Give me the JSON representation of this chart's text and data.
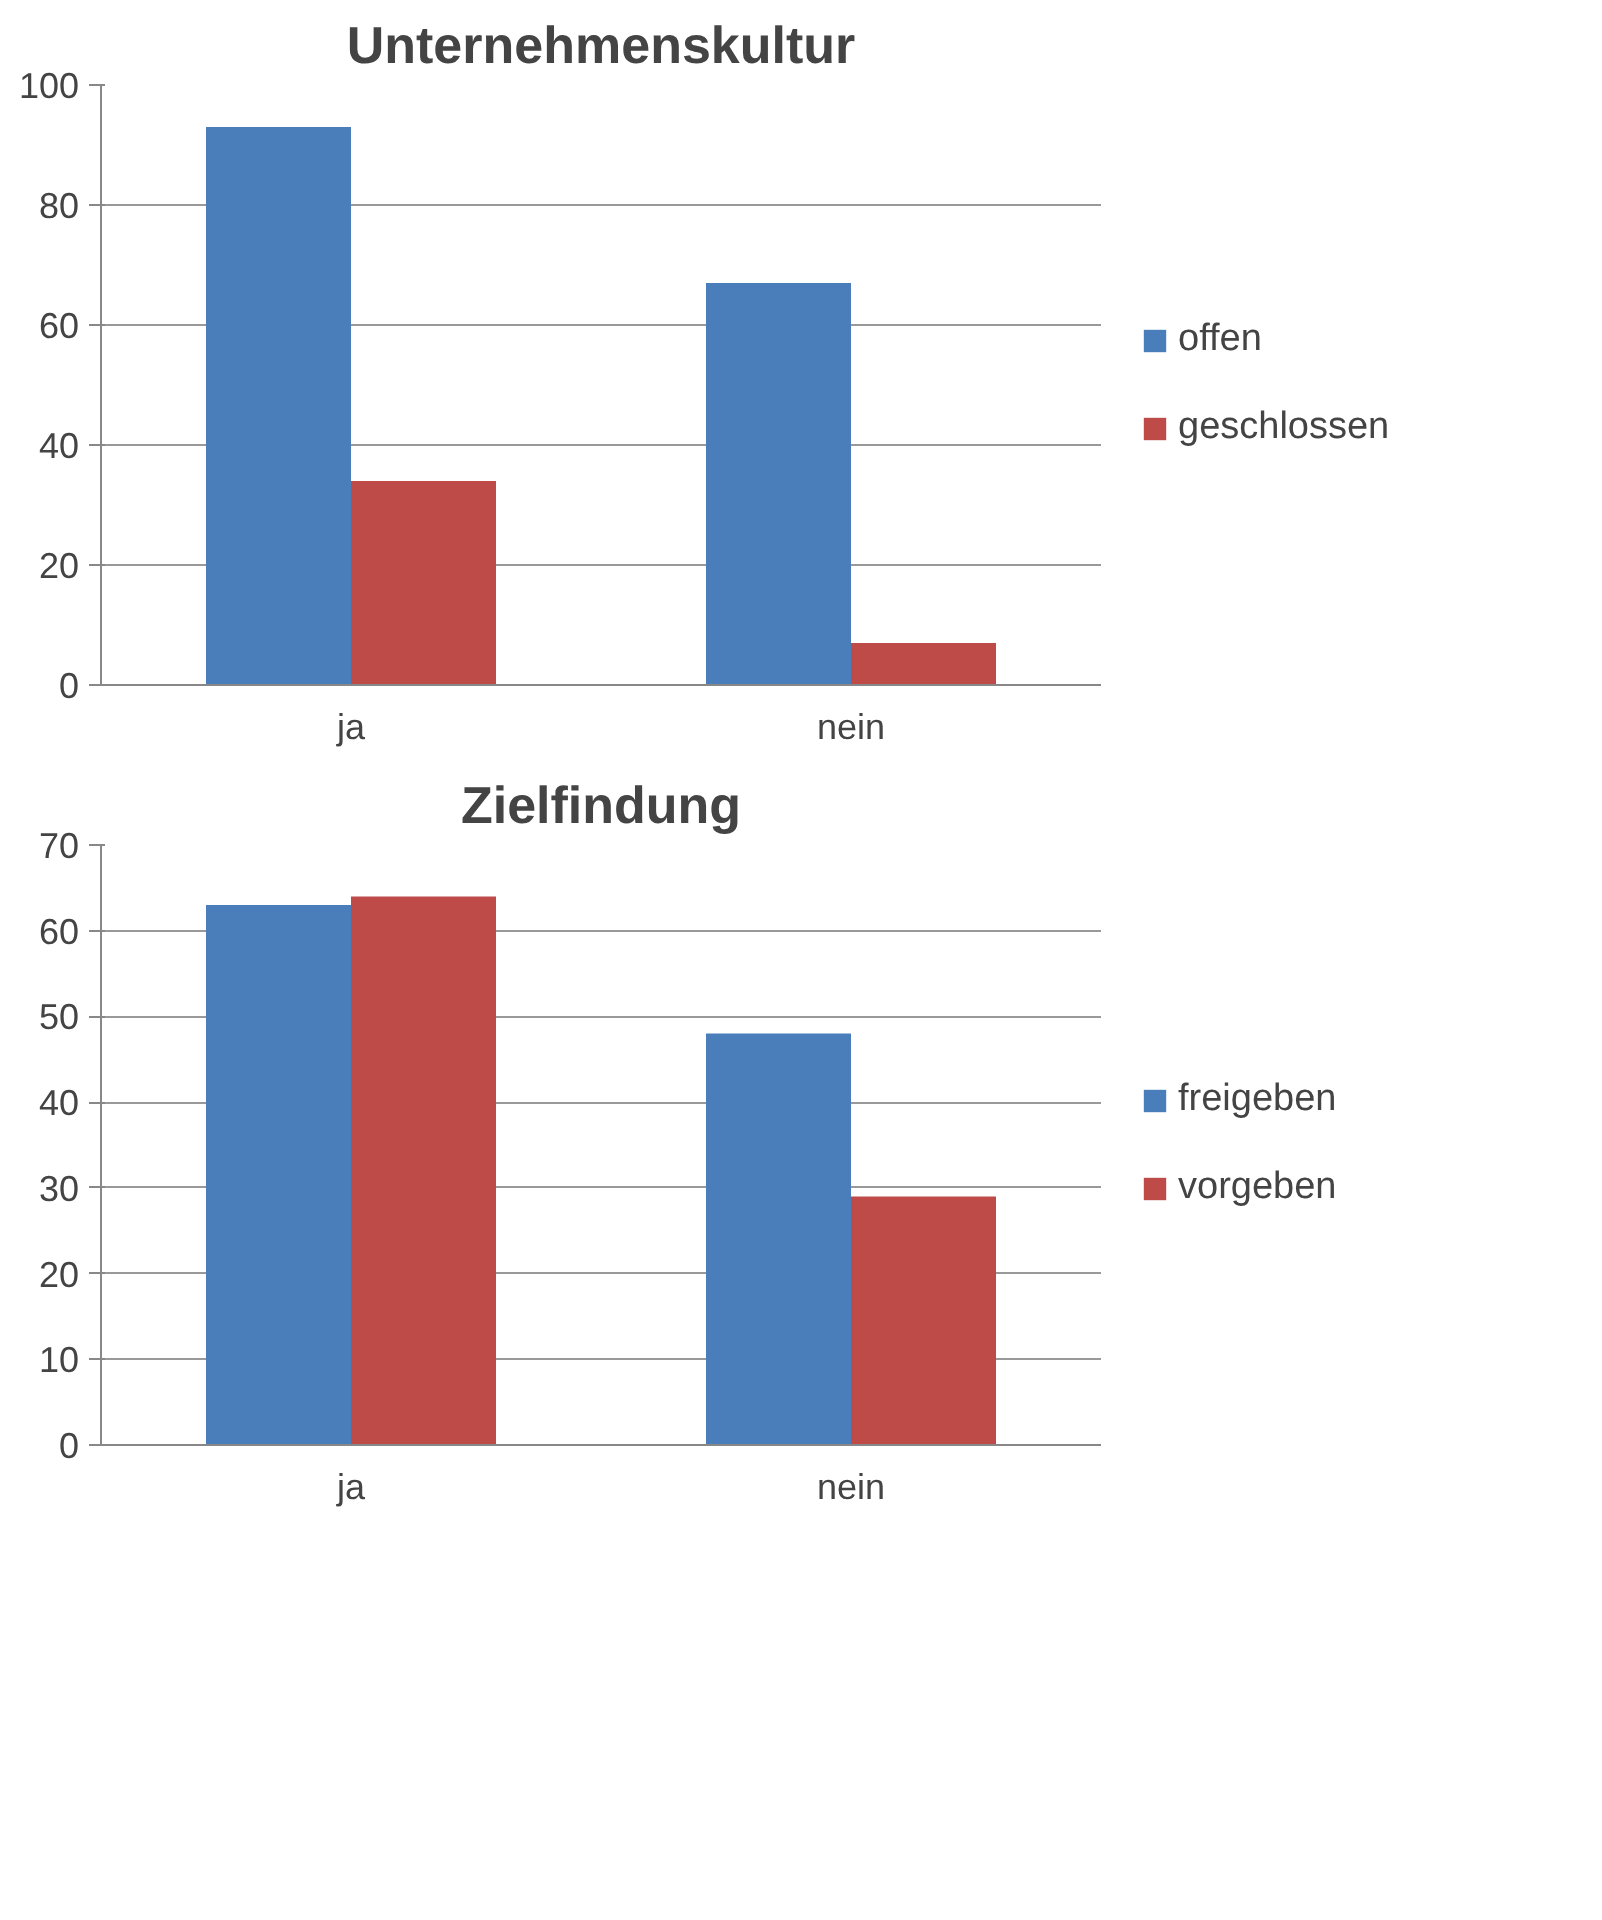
{
  "chart_data": [
    {
      "type": "bar",
      "title": "Unternehmenskultur",
      "categories": [
        "ja",
        "nein"
      ],
      "ylim": [
        0,
        100
      ],
      "yticks": [
        0,
        20,
        40,
        60,
        80,
        100
      ],
      "grid": "y",
      "legend": "right",
      "series": [
        {
          "name": "offen",
          "color": "#4a7ebb",
          "values": [
            93,
            67
          ]
        },
        {
          "name": "geschlossen",
          "color": "#be4b48",
          "values": [
            34,
            7
          ]
        }
      ]
    },
    {
      "type": "bar",
      "title": "Zielfindung",
      "categories": [
        "ja",
        "nein"
      ],
      "ylim": [
        0,
        70
      ],
      "yticks": [
        0,
        10,
        20,
        30,
        40,
        50,
        60,
        70
      ],
      "grid": "y",
      "legend": "right",
      "series": [
        {
          "name": "freigeben",
          "color": "#4a7ebb",
          "values": [
            63,
            48
          ]
        },
        {
          "name": "vorgeben",
          "color": "#be4b48",
          "values": [
            64,
            29
          ]
        }
      ]
    }
  ]
}
